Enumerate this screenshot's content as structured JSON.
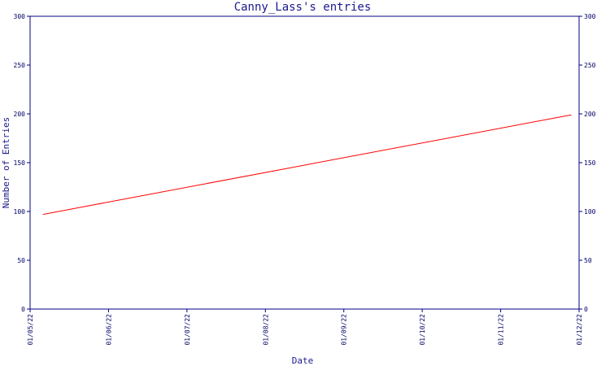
{
  "chart_data": {
    "type": "line",
    "title": "Canny_Lass's entries",
    "xlabel": "Date",
    "ylabel": "Number of Entries",
    "ylim": [
      0,
      300
    ],
    "y_ticks": [
      0,
      50,
      100,
      150,
      200,
      250,
      300
    ],
    "x_ticks": [
      "01/05/22",
      "01/06/22",
      "01/07/22",
      "01/08/22",
      "01/09/22",
      "01/10/22",
      "01/11/22",
      "01/12/22"
    ],
    "x_range": [
      "2022-05-01",
      "2022-12-01"
    ],
    "right_axis": true,
    "grid": false,
    "series": [
      {
        "color": "#ff0000",
        "points": [
          {
            "date": "2022-05-06",
            "value": 97
          },
          {
            "date": "2022-11-28",
            "value": 199
          }
        ]
      }
    ]
  },
  "colors": {
    "axis": "#000080",
    "text": "#1a1a8c",
    "background": "#ffffff"
  }
}
